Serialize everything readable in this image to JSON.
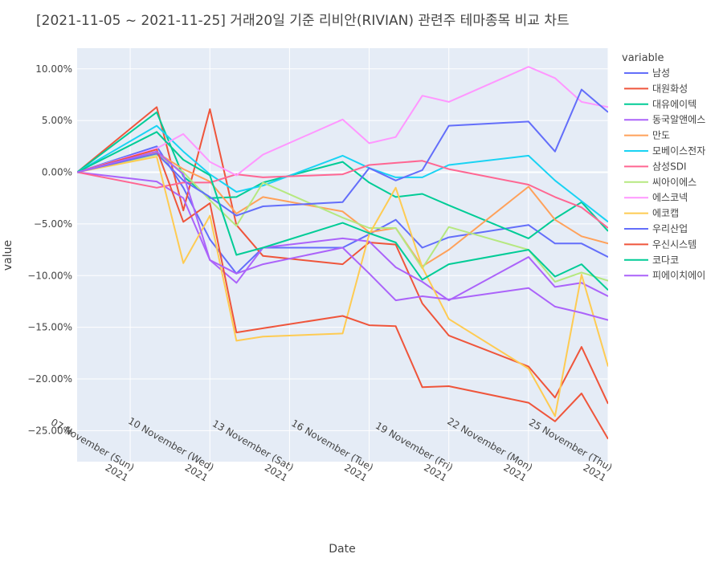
{
  "chart_data": {
    "type": "line",
    "title": "[2021-11-05 ~ 2021-11-25] 거래20일 기준 리비안(RIVIAN) 관련주 테마종목 비교 차트",
    "xlabel": "Date",
    "ylabel": "value",
    "legend_title": "variable",
    "legend_position": "right",
    "grid": true,
    "x": [
      "2021-11-05",
      "2021-11-08",
      "2021-11-09",
      "2021-11-10",
      "2021-11-11",
      "2021-11-12",
      "2021-11-15",
      "2021-11-16",
      "2021-11-17",
      "2021-11-18",
      "2021-11-19",
      "2021-11-22",
      "2021-11-23",
      "2021-11-24",
      "2021-11-25"
    ],
    "xlim": [
      "2021-11-05",
      "2021-11-25"
    ],
    "ylim": [
      -0.28,
      0.12
    ],
    "x_ticks": [
      {
        "date": "2021-11-07",
        "line1": "07 November (Sun)",
        "line2": "2021"
      },
      {
        "date": "2021-11-10",
        "line1": "10 November (Wed)",
        "line2": "2021"
      },
      {
        "date": "2021-11-13",
        "line1": "13 November (Sat)",
        "line2": "2021"
      },
      {
        "date": "2021-11-16",
        "line1": "16 November (Tue)",
        "line2": "2021"
      },
      {
        "date": "2021-11-19",
        "line1": "19 November (Fri)",
        "line2": "2021"
      },
      {
        "date": "2021-11-22",
        "line1": "22 November (Mon)",
        "line2": "2021"
      },
      {
        "date": "2021-11-25",
        "line1": "25 November (Thu)",
        "line2": "2021"
      }
    ],
    "y_ticks": [
      {
        "value": 0.1,
        "label": "10.00%"
      },
      {
        "value": 0.05,
        "label": "5.00%"
      },
      {
        "value": 0.0,
        "label": "0.00%"
      },
      {
        "value": -0.05,
        "label": "−5.00%"
      },
      {
        "value": -0.1,
        "label": "−10.00%"
      },
      {
        "value": -0.15,
        "label": "−15.00%"
      },
      {
        "value": -0.2,
        "label": "−20.00%"
      },
      {
        "value": -0.25,
        "label": "−25.00%"
      }
    ],
    "series": [
      {
        "name": "남성",
        "color": "#636efa",
        "values": [
          0,
          0.025,
          -0.015,
          -0.065,
          -0.098,
          -0.073,
          -0.073,
          -0.06,
          -0.046,
          -0.073,
          -0.063,
          -0.051,
          -0.069,
          -0.069,
          -0.082
        ]
      },
      {
        "name": "대원화성",
        "color": "#EF553B",
        "values": [
          0,
          0.063,
          -0.037,
          0.061,
          -0.051,
          -0.081,
          -0.089,
          -0.068,
          -0.07,
          -0.127,
          -0.158,
          -0.188,
          -0.218,
          -0.169,
          -0.224
        ]
      },
      {
        "name": "대유에이텍",
        "color": "#00cc96",
        "values": [
          0,
          0.058,
          -0.004,
          -0.025,
          -0.024,
          -0.01,
          0.01,
          -0.01,
          -0.024,
          -0.021,
          -0.032,
          -0.064,
          -0.045,
          -0.029,
          -0.057
        ]
      },
      {
        "name": "동국알앤에스",
        "color": "#ab63fa",
        "values": [
          0,
          -0.009,
          -0.025,
          -0.085,
          -0.107,
          -0.073,
          -0.064,
          -0.067,
          -0.092,
          -0.106,
          -0.124,
          -0.082,
          -0.111,
          -0.107,
          -0.12
        ]
      },
      {
        "name": "만도",
        "color": "#FFA15A",
        "values": [
          0,
          0.019,
          0.003,
          -0.009,
          -0.04,
          -0.024,
          -0.038,
          -0.058,
          -0.054,
          -0.091,
          -0.075,
          -0.014,
          -0.046,
          -0.062,
          -0.069
        ]
      },
      {
        "name": "모베이스전자",
        "color": "#19d3f3",
        "values": [
          0,
          0.045,
          0.02,
          -0.002,
          -0.019,
          -0.013,
          0.016,
          0.004,
          -0.005,
          -0.005,
          0.007,
          0.016,
          -0.008,
          -0.028,
          -0.048
        ]
      },
      {
        "name": "삼성SDI",
        "color": "#FF6692",
        "values": [
          0,
          -0.015,
          -0.01,
          -0.01,
          -0.002,
          -0.005,
          -0.002,
          0.007,
          0.009,
          0.011,
          0.003,
          -0.012,
          -0.024,
          -0.034,
          -0.054
        ]
      },
      {
        "name": "씨아이에스",
        "color": "#B6E880",
        "values": [
          0,
          0.017,
          0.0,
          -0.027,
          -0.052,
          -0.01,
          -0.044,
          -0.054,
          -0.054,
          -0.093,
          -0.053,
          -0.075,
          -0.106,
          -0.097,
          -0.105
        ]
      },
      {
        "name": "에스코넥",
        "color": "#FF97FF",
        "values": [
          0,
          0.023,
          0.037,
          0.01,
          -0.003,
          0.017,
          0.051,
          0.028,
          0.034,
          0.074,
          0.068,
          0.102,
          0.091,
          0.068,
          0.063
        ]
      },
      {
        "name": "에코캡",
        "color": "#FECB52",
        "values": [
          0,
          0.015,
          -0.088,
          -0.042,
          -0.163,
          -0.159,
          -0.156,
          -0.06,
          -0.015,
          -0.092,
          -0.142,
          -0.19,
          -0.236,
          -0.099,
          -0.188
        ]
      },
      {
        "name": "우리산업",
        "color": "#636efa",
        "values": [
          0,
          0.018,
          -0.008,
          -0.024,
          -0.042,
          -0.033,
          -0.029,
          0.004,
          -0.008,
          0.002,
          0.045,
          0.049,
          0.02,
          0.08,
          0.058
        ]
      },
      {
        "name": "우신시스템",
        "color": "#EF553B",
        "values": [
          0,
          0.022,
          -0.048,
          -0.03,
          -0.155,
          -0.151,
          -0.139,
          -0.148,
          -0.149,
          -0.208,
          -0.207,
          -0.223,
          -0.241,
          -0.214,
          -0.258
        ]
      },
      {
        "name": "코다코",
        "color": "#00cc96",
        "values": [
          0,
          0.039,
          0.012,
          -0.003,
          -0.08,
          -0.073,
          -0.049,
          -0.059,
          -0.068,
          -0.104,
          -0.089,
          -0.075,
          -0.101,
          -0.089,
          -0.114
        ]
      },
      {
        "name": "피에이치에이",
        "color": "#ab63fa",
        "values": [
          0,
          0.02,
          -0.002,
          -0.085,
          -0.098,
          -0.089,
          -0.073,
          -0.098,
          -0.124,
          -0.12,
          -0.123,
          -0.112,
          -0.13,
          -0.136,
          -0.143
        ]
      }
    ]
  }
}
